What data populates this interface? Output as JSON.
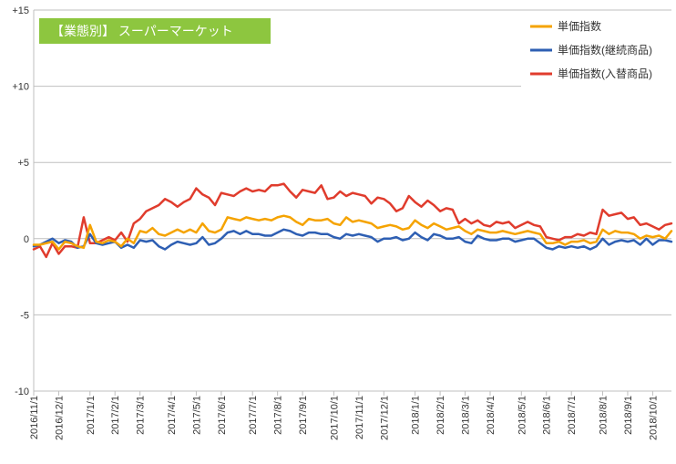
{
  "chart_data": {
    "type": "line",
    "title": "【業態別】 スーパーマーケット",
    "ylim": [
      -10,
      15
    ],
    "y_ticks": [
      "+15",
      "+10",
      "+5",
      "0",
      "-5",
      "-10"
    ],
    "y_tick_values": [
      15,
      10,
      5,
      0,
      -5,
      -10
    ],
    "x_tick_labels": [
      "2016/11/1",
      "2016/12/1",
      "2017/1/1",
      "2017/2/1",
      "2017/3/1",
      "2017/4/1",
      "2017/5/1",
      "2017/6/1",
      "2017/7/1",
      "2017/8/1",
      "2017/9/1",
      "2017/10/1",
      "2017/11/1",
      "2017/12/1",
      "2018/1/1",
      "2018/2/1",
      "2018/3/1",
      "2018/4/1",
      "2018/5/1",
      "2018/6/1",
      "2018/7/1",
      "2018/8/1",
      "2018/9/1",
      "2018/10/1"
    ],
    "x_tick_index": [
      0,
      4,
      9,
      13,
      17,
      22,
      26,
      30,
      35,
      39,
      43,
      48,
      52,
      56,
      61,
      65,
      69,
      73,
      78,
      82,
      86,
      91,
      95,
      99
    ],
    "num_points": 103,
    "gridlines": true,
    "legend_position": "top-right",
    "series": [
      {
        "name": "単価指数",
        "color": "#F5A300",
        "values": [
          -0.4,
          -0.4,
          -0.3,
          -0.2,
          -0.7,
          -0.2,
          -0.3,
          -0.5,
          -0.6,
          0.9,
          -0.2,
          -0.3,
          -0.1,
          -0.2,
          -0.5,
          0.0,
          -0.3,
          0.5,
          0.4,
          0.7,
          0.3,
          0.2,
          0.4,
          0.6,
          0.4,
          0.6,
          0.4,
          1.0,
          0.5,
          0.4,
          0.6,
          1.4,
          1.3,
          1.2,
          1.4,
          1.3,
          1.2,
          1.3,
          1.2,
          1.4,
          1.5,
          1.4,
          1.1,
          0.9,
          1.3,
          1.2,
          1.2,
          1.3,
          1.0,
          0.9,
          1.4,
          1.1,
          1.2,
          1.1,
          1.0,
          0.7,
          0.8,
          0.9,
          0.8,
          0.6,
          0.7,
          1.2,
          0.9,
          0.7,
          1.0,
          0.8,
          0.6,
          0.7,
          0.8,
          0.5,
          0.3,
          0.6,
          0.5,
          0.4,
          0.4,
          0.5,
          0.4,
          0.3,
          0.4,
          0.5,
          0.4,
          0.3,
          -0.3,
          -0.3,
          -0.2,
          -0.4,
          -0.2,
          -0.2,
          -0.1,
          -0.3,
          -0.2,
          0.6,
          0.3,
          0.5,
          0.4,
          0.4,
          0.3,
          0.0,
          0.2,
          0.1,
          0.2,
          0.0,
          0.5
        ]
      },
      {
        "name": "単価指数(継続商品)",
        "color": "#2E5FB3",
        "values": [
          -0.5,
          -0.4,
          -0.2,
          0.0,
          -0.3,
          -0.1,
          -0.2,
          -0.6,
          -0.5,
          0.3,
          -0.3,
          -0.4,
          -0.3,
          -0.2,
          -0.6,
          -0.4,
          -0.6,
          -0.1,
          -0.2,
          -0.1,
          -0.5,
          -0.7,
          -0.4,
          -0.2,
          -0.3,
          -0.4,
          -0.3,
          0.1,
          -0.4,
          -0.3,
          0.0,
          0.4,
          0.5,
          0.3,
          0.5,
          0.3,
          0.3,
          0.2,
          0.2,
          0.4,
          0.6,
          0.5,
          0.3,
          0.2,
          0.4,
          0.4,
          0.3,
          0.3,
          0.1,
          0.0,
          0.3,
          0.2,
          0.3,
          0.2,
          0.1,
          -0.2,
          0.0,
          0.0,
          0.1,
          -0.1,
          0.0,
          0.4,
          0.1,
          -0.1,
          0.3,
          0.2,
          0.0,
          0.0,
          0.1,
          -0.2,
          -0.3,
          0.2,
          0.0,
          -0.1,
          -0.1,
          0.0,
          0.0,
          -0.2,
          -0.1,
          0.0,
          0.0,
          -0.3,
          -0.6,
          -0.7,
          -0.5,
          -0.6,
          -0.5,
          -0.6,
          -0.5,
          -0.7,
          -0.5,
          0.0,
          -0.4,
          -0.2,
          -0.1,
          -0.2,
          -0.1,
          -0.4,
          0.0,
          -0.4,
          -0.1,
          -0.1,
          -0.2
        ]
      },
      {
        "name": "単価指数(入替商品)",
        "color": "#E03C2D",
        "values": [
          -0.7,
          -0.5,
          -1.2,
          -0.3,
          -1.0,
          -0.5,
          -0.5,
          -0.6,
          1.4,
          -0.3,
          -0.3,
          -0.1,
          0.1,
          -0.1,
          0.4,
          -0.2,
          1.0,
          1.3,
          1.8,
          2.0,
          2.2,
          2.6,
          2.4,
          2.1,
          2.4,
          2.6,
          3.3,
          2.9,
          2.7,
          2.2,
          3.0,
          2.9,
          2.8,
          3.1,
          3.3,
          3.1,
          3.2,
          3.1,
          3.5,
          3.5,
          3.6,
          3.1,
          2.7,
          3.2,
          3.1,
          3.0,
          3.5,
          2.6,
          2.7,
          3.1,
          2.8,
          3.0,
          2.9,
          2.8,
          2.3,
          2.7,
          2.6,
          2.3,
          1.8,
          2.0,
          2.8,
          2.4,
          2.1,
          2.5,
          2.2,
          1.8,
          2.0,
          1.9,
          1.0,
          1.3,
          1.0,
          1.2,
          0.9,
          0.8,
          1.1,
          1.0,
          1.1,
          0.7,
          0.9,
          1.1,
          0.9,
          0.8,
          0.1,
          0.0,
          -0.1,
          0.1,
          0.1,
          0.3,
          0.2,
          0.4,
          0.3,
          1.9,
          1.5,
          1.6,
          1.7,
          1.3,
          1.4,
          0.9,
          1.0,
          0.8,
          0.6,
          0.9,
          1.0
        ]
      }
    ]
  }
}
